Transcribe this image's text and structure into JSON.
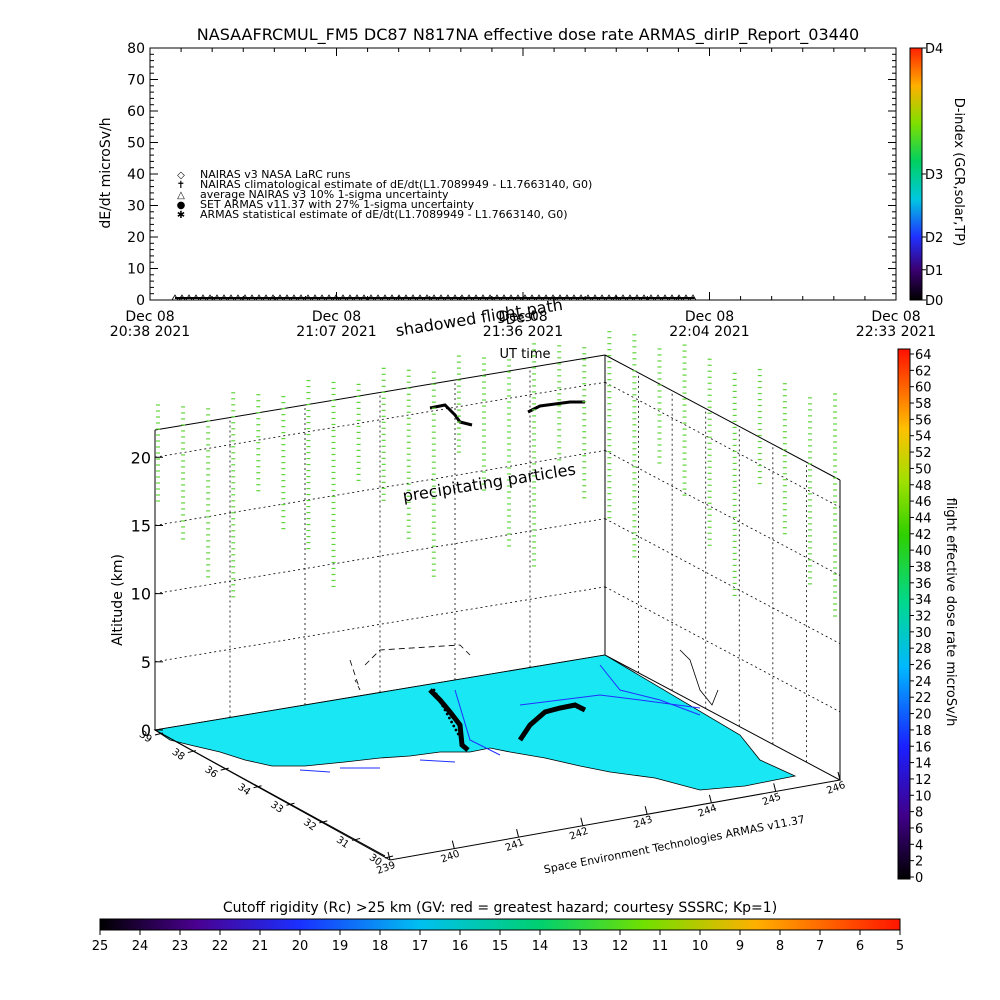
{
  "chart_data": [
    {
      "type": "line",
      "title": "NASAAFRCMUL_FM5 DC87 N817NA effective dose rate ARMAS_dirIP_Report_03440",
      "ylabel": "dE/dt microSv/h",
      "xlabel": "UT time",
      "ylim": [
        0,
        80
      ],
      "y_ticks": [
        "0",
        "10",
        "20",
        "30",
        "40",
        "50",
        "60",
        "70",
        "80"
      ],
      "x_ticks": [
        {
          "date": "Dec 08",
          "time": "20:38 2021"
        },
        {
          "date": "Dec 08",
          "time": "21:07 2021"
        },
        {
          "date": "Dec 08",
          "time": "21:36 2021"
        },
        {
          "date": "Dec 08",
          "time": "22:04 2021"
        },
        {
          "date": "Dec 08",
          "time": "22:33 2021"
        }
      ],
      "legend": [
        {
          "symbol": "◇",
          "label": "NAIRAS v3 NASA LaRC runs"
        },
        {
          "symbol": "✝",
          "label": "NAIRAS climatological estimate of dE/dt(L1.7089949 - L1.7663140, G0)"
        },
        {
          "symbol": "△",
          "label": "average NAIRAS v3 10% 1-sigma uncertainty"
        },
        {
          "symbol": "●",
          "label": "SET ARMAS v11.37 with 27% 1-sigma uncertainty"
        },
        {
          "symbol": "✱",
          "label": "ARMAS statistical estimate of dE/dt(L1.7089949 - L1.7663140, G0)"
        }
      ],
      "legend_placement": "center-left",
      "series": [
        {
          "x_range_fraction": [
            0.0,
            0.73
          ],
          "values_level": 0.0,
          "marker": "triangle"
        }
      ],
      "right_colorbar": {
        "label": "D-index (GCR,solar,TP)",
        "ticks": [
          "D0",
          "D1",
          "D2",
          "D3",
          "D4"
        ]
      }
    },
    {
      "type": "scatter",
      "zlabel": "Altitude (km)",
      "z_ticks": [
        "0",
        "5",
        "10",
        "15",
        "20"
      ],
      "lat_ticks": [
        "30",
        "31",
        "32",
        "33",
        "34",
        "36",
        "38",
        "39"
      ],
      "lon_ticks": [
        "239",
        "240",
        "241",
        "242",
        "243",
        "244",
        "245",
        "246"
      ],
      "annotations": {
        "top_wall": "shadowed flight path",
        "top_wall_overlap": "Dest",
        "mid": "precipitating particles",
        "credit": "Space Environment Technologies ARMAS v11.37"
      },
      "right_colorbar": {
        "label": "flight effective dose rate microSv/h",
        "ticks": [
          "0",
          "2",
          "4",
          "6",
          "8",
          "10",
          "12",
          "14",
          "16",
          "18",
          "20",
          "22",
          "24",
          "26",
          "28",
          "30",
          "32",
          "34",
          "36",
          "38",
          "40",
          "42",
          "44",
          "46",
          "48",
          "50",
          "52",
          "54",
          "56",
          "58",
          "60",
          "62",
          "64"
        ]
      },
      "bottom_colorbar": {
        "label": "Cutoff rigidity (Rc) >25 km (GV: red = greatest hazard; courtesy SSSRC; Kp=1)",
        "ticks": [
          "25",
          "24",
          "23",
          "22",
          "21",
          "20",
          "19",
          "18",
          "17",
          "16",
          "15",
          "14",
          "13",
          "12",
          "11",
          "10",
          "9",
          "8",
          "7",
          "6",
          "5"
        ]
      },
      "colors": {
        "map_fill": "#19e8f4",
        "particles": "#5fd43a",
        "track": "#000000"
      }
    }
  ]
}
